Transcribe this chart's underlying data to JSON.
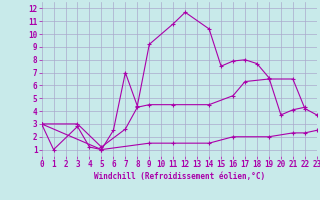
{
  "xlabel": "Windchill (Refroidissement éolien,°C)",
  "bg_color": "#c8eaea",
  "grid_color": "#aaaacc",
  "line_color": "#aa00aa",
  "xlim": [
    0,
    23
  ],
  "ylim": [
    0.5,
    12.5
  ],
  "xticks": [
    0,
    1,
    2,
    3,
    4,
    5,
    6,
    7,
    8,
    9,
    10,
    11,
    12,
    13,
    14,
    15,
    16,
    17,
    18,
    19,
    20,
    21,
    22,
    23
  ],
  "yticks": [
    1,
    2,
    3,
    4,
    5,
    6,
    7,
    8,
    9,
    10,
    11,
    12
  ],
  "line1_x": [
    0,
    1,
    3,
    4,
    5,
    6,
    7,
    8,
    9,
    11,
    12,
    14,
    15,
    16,
    17,
    18,
    19,
    20,
    21,
    22
  ],
  "line1_y": [
    3.0,
    1.0,
    2.8,
    1.2,
    1.0,
    2.5,
    7.0,
    4.4,
    9.2,
    10.8,
    11.7,
    10.4,
    7.5,
    7.9,
    8.0,
    7.7,
    6.6,
    3.7,
    4.1,
    4.3
  ],
  "line2_x": [
    0,
    3,
    5,
    7,
    8,
    9,
    11,
    14,
    16,
    17,
    19,
    21,
    22,
    23
  ],
  "line2_y": [
    3.0,
    3.0,
    1.2,
    2.6,
    4.3,
    4.5,
    4.5,
    4.5,
    5.2,
    6.3,
    6.5,
    6.5,
    4.2,
    3.7
  ],
  "line3_x": [
    0,
    5,
    9,
    11,
    14,
    16,
    19,
    21,
    22,
    23
  ],
  "line3_y": [
    3.0,
    1.0,
    1.5,
    1.5,
    1.5,
    2.0,
    2.0,
    2.3,
    2.3,
    2.5
  ],
  "tick_fontsize": 5.5,
  "xlabel_fontsize": 5.5
}
